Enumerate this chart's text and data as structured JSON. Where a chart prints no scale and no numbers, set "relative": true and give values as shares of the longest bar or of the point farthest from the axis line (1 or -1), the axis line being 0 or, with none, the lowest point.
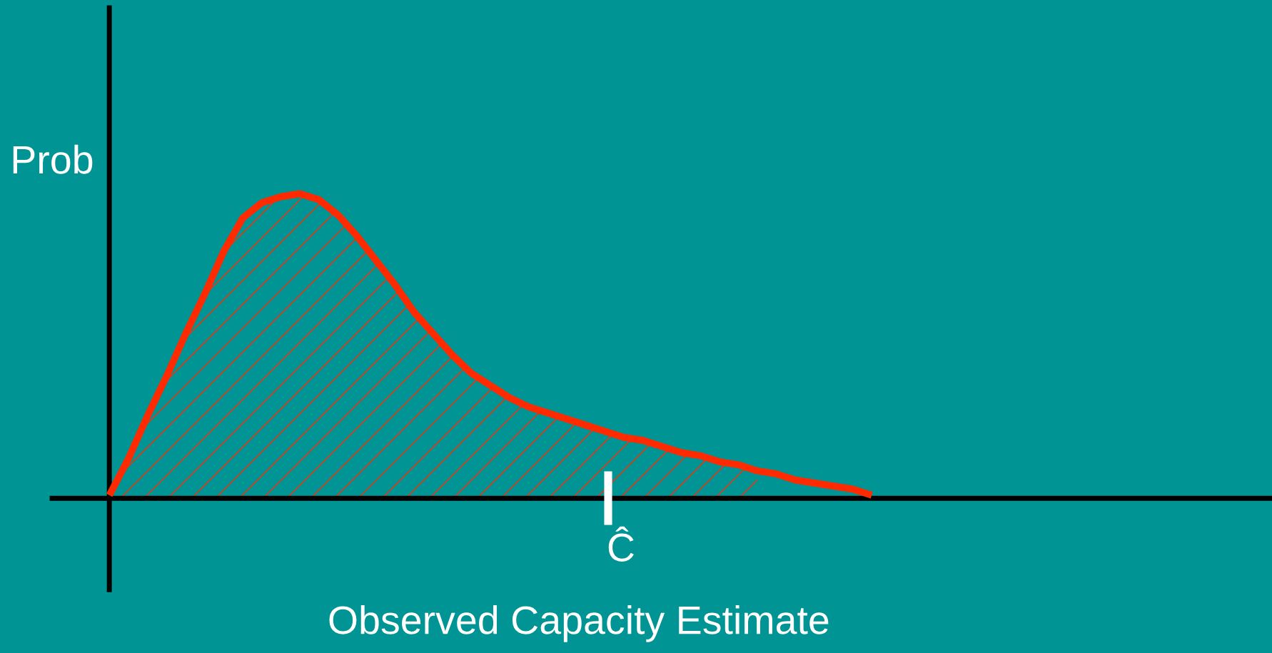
{
  "chart_data": {
    "type": "line",
    "relative": true,
    "ylabel": "Prob",
    "xlabel": "Observed Capacity Estimate",
    "annotations": [
      "Ĉ"
    ],
    "legend": false,
    "marker": "none",
    "line_style": "solid",
    "categories": [
      null,
      null,
      null,
      null,
      null,
      null,
      null,
      null,
      null,
      null,
      null,
      null,
      null,
      null,
      null,
      null,
      null,
      null,
      null,
      null,
      null,
      null,
      null,
      null,
      null,
      null,
      null,
      null,
      null,
      null,
      null,
      null,
      null,
      null,
      null,
      null,
      null,
      null,
      null,
      null,
      null
    ],
    "series": [
      {
        "color": "#ff2a00",
        "values": [
          0.01,
          0.13,
          0.27,
          0.4,
          0.54,
          0.67,
          0.81,
          0.92,
          0.97,
          0.99,
          1.0,
          0.98,
          0.93,
          0.86,
          0.78,
          0.7,
          0.61,
          0.54,
          0.47,
          0.41,
          0.37,
          0.33,
          0.3,
          0.28,
          0.26,
          0.24,
          0.22,
          0.2,
          0.19,
          0.17,
          0.15,
          0.14,
          0.12,
          0.11,
          0.09,
          0.08,
          0.06,
          0.05,
          0.04,
          0.03,
          0.01
        ]
      },
      {
        "type": "area",
        "color": "#ff2a00",
        "values": [
          0.01,
          0.13,
          0.27,
          0.4,
          0.54,
          0.67,
          0.81,
          0.92,
          0.97,
          0.99,
          1.0,
          0.98,
          0.93,
          0.86,
          0.78,
          0.7,
          0.61,
          0.54,
          0.47,
          0.41,
          0.37,
          0.33,
          0.3,
          0.28,
          0.26,
          0.24,
          0.22,
          0.2,
          0.19,
          0.17,
          0.15,
          0.14,
          0.12,
          0.11,
          0.09,
          null,
          null,
          null,
          null,
          null,
          null
        ]
      }
    ]
  }
}
